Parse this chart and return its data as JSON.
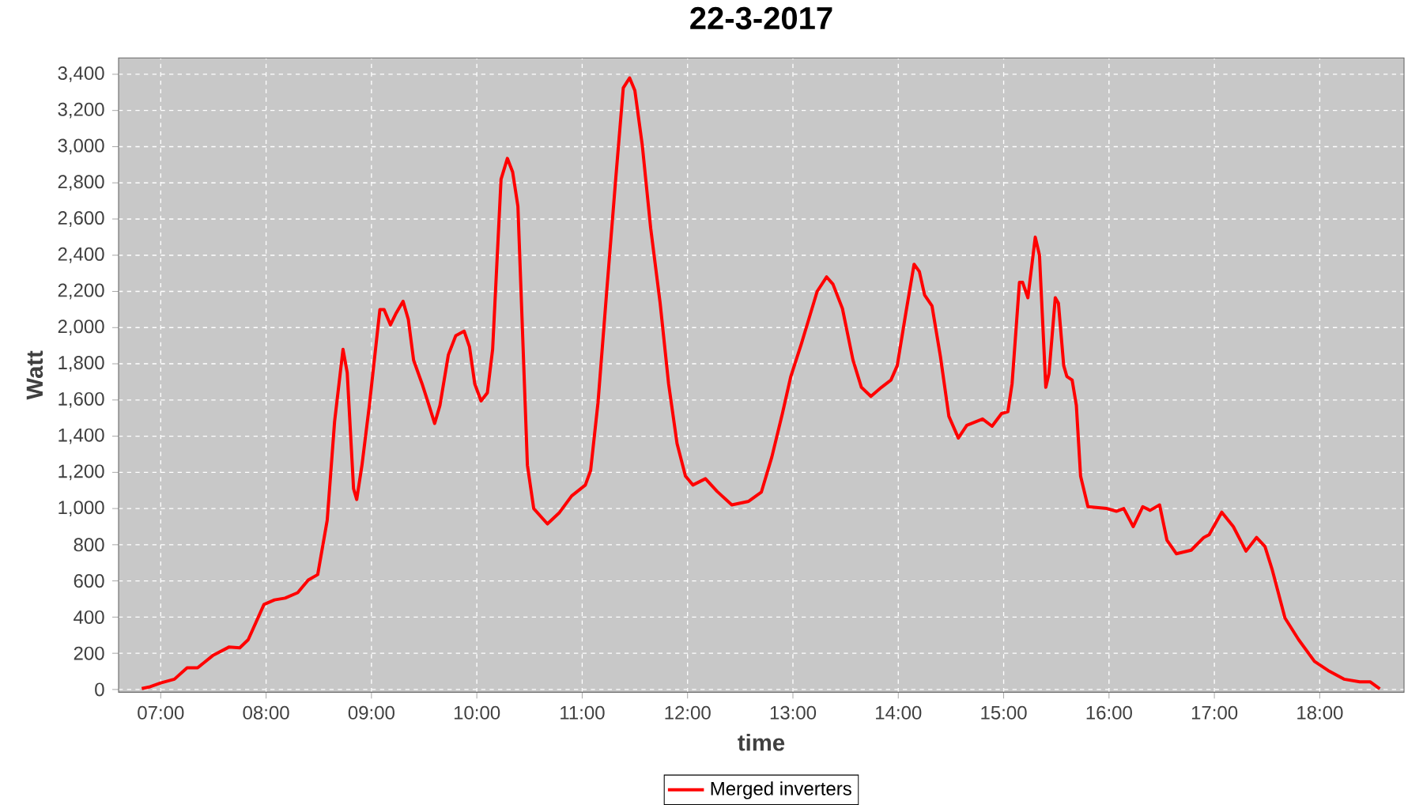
{
  "chart_data": {
    "type": "line",
    "title": "22-3-2017",
    "xlabel": "time",
    "ylabel": "Watt",
    "xlim": [
      6.6,
      18.8
    ],
    "ylim": [
      -15,
      3490
    ],
    "xticks": [
      {
        "value": 7,
        "label": "07:00"
      },
      {
        "value": 8,
        "label": "08:00"
      },
      {
        "value": 9,
        "label": "09:00"
      },
      {
        "value": 10,
        "label": "10:00"
      },
      {
        "value": 11,
        "label": "11:00"
      },
      {
        "value": 12,
        "label": "12:00"
      },
      {
        "value": 13,
        "label": "13:00"
      },
      {
        "value": 14,
        "label": "14:00"
      },
      {
        "value": 15,
        "label": "15:00"
      },
      {
        "value": 16,
        "label": "16:00"
      },
      {
        "value": 17,
        "label": "17:00"
      },
      {
        "value": 18,
        "label": "18:00"
      }
    ],
    "yticks": [
      0,
      200,
      400,
      600,
      800,
      {
        "value": 1000,
        "label": "1,000"
      },
      {
        "value": 1200,
        "label": "1,200"
      },
      {
        "value": 1400,
        "label": "1,400"
      },
      {
        "value": 1600,
        "label": "1,600"
      },
      {
        "value": 1800,
        "label": "1,800"
      },
      {
        "value": 2000,
        "label": "2,000"
      },
      {
        "value": 2200,
        "label": "2,200"
      },
      {
        "value": 2400,
        "label": "2,400"
      },
      {
        "value": 2600,
        "label": "2,600"
      },
      {
        "value": 2800,
        "label": "2,800"
      },
      {
        "value": 3000,
        "label": "3,000"
      },
      {
        "value": 3200,
        "label": "3,200"
      },
      {
        "value": 3400,
        "label": "3,400"
      }
    ],
    "grid": true,
    "legend": "bottom",
    "line_style": "solid",
    "series": [
      {
        "name": "Merged inverters",
        "color": "#ff0000",
        "x": [
          6.82,
          6.9,
          7.0,
          7.13,
          7.25,
          7.35,
          7.5,
          7.65,
          7.75,
          7.83,
          7.98,
          8.08,
          8.18,
          8.3,
          8.4,
          8.49,
          8.58,
          8.65,
          8.73,
          8.77,
          8.83,
          8.86,
          8.91,
          8.98,
          9.08,
          9.12,
          9.18,
          9.23,
          9.3,
          9.35,
          9.4,
          9.48,
          9.53,
          9.6,
          9.65,
          9.73,
          9.8,
          9.88,
          9.93,
          9.98,
          10.04,
          10.1,
          10.15,
          10.23,
          10.29,
          10.34,
          10.39,
          10.48,
          10.54,
          10.67,
          10.78,
          10.9,
          11.03,
          11.08,
          11.15,
          11.23,
          11.32,
          11.39,
          11.45,
          11.5,
          11.57,
          11.65,
          11.74,
          11.82,
          11.9,
          11.98,
          12.05,
          12.17,
          12.28,
          12.42,
          12.58,
          12.7,
          12.8,
          12.9,
          12.98,
          13.08,
          13.15,
          13.23,
          13.32,
          13.38,
          13.47,
          13.57,
          13.65,
          13.74,
          13.84,
          13.93,
          13.99,
          14.07,
          14.15,
          14.2,
          14.25,
          14.32,
          14.4,
          14.48,
          14.57,
          14.65,
          14.8,
          14.89,
          14.98,
          15.04,
          15.08,
          15.15,
          15.18,
          15.23,
          15.3,
          15.34,
          15.4,
          15.43,
          15.49,
          15.52,
          15.57,
          15.6,
          15.65,
          15.69,
          15.73,
          15.8,
          15.98,
          16.07,
          16.14,
          16.23,
          16.32,
          16.39,
          16.48,
          16.55,
          16.64,
          16.78,
          16.9,
          16.95,
          17.07,
          17.18,
          17.3,
          17.4,
          17.48,
          17.55,
          17.67,
          17.8,
          17.95,
          18.08,
          18.23,
          18.38,
          18.48,
          18.57
        ],
        "values": [
          5,
          15,
          36,
          57,
          120,
          120,
          190,
          235,
          230,
          275,
          470,
          495,
          505,
          535,
          605,
          635,
          935,
          1480,
          1880,
          1750,
          1110,
          1050,
          1240,
          1570,
          2100,
          2100,
          2015,
          2075,
          2145,
          2045,
          1820,
          1690,
          1600,
          1470,
          1570,
          1850,
          1955,
          1980,
          1895,
          1690,
          1595,
          1640,
          1880,
          2820,
          2935,
          2860,
          2670,
          1240,
          1000,
          915,
          975,
          1070,
          1130,
          1210,
          1585,
          2180,
          2835,
          3325,
          3380,
          3310,
          3010,
          2550,
          2135,
          1690,
          1360,
          1180,
          1130,
          1165,
          1095,
          1020,
          1040,
          1090,
          1285,
          1525,
          1730,
          1910,
          2045,
          2200,
          2280,
          2240,
          2105,
          1820,
          1670,
          1620,
          1670,
          1710,
          1790,
          2075,
          2350,
          2310,
          2180,
          2120,
          1840,
          1510,
          1390,
          1460,
          1495,
          1455,
          1525,
          1535,
          1690,
          2250,
          2250,
          2165,
          2500,
          2400,
          1670,
          1745,
          2165,
          2135,
          1790,
          1730,
          1710,
          1570,
          1180,
          1010,
          1000,
          985,
          1000,
          900,
          1010,
          990,
          1020,
          825,
          750,
          770,
          840,
          855,
          980,
          900,
          765,
          840,
          790,
          660,
          395,
          275,
          155,
          105,
          57,
          42,
          42,
          3
        ]
      }
    ]
  }
}
